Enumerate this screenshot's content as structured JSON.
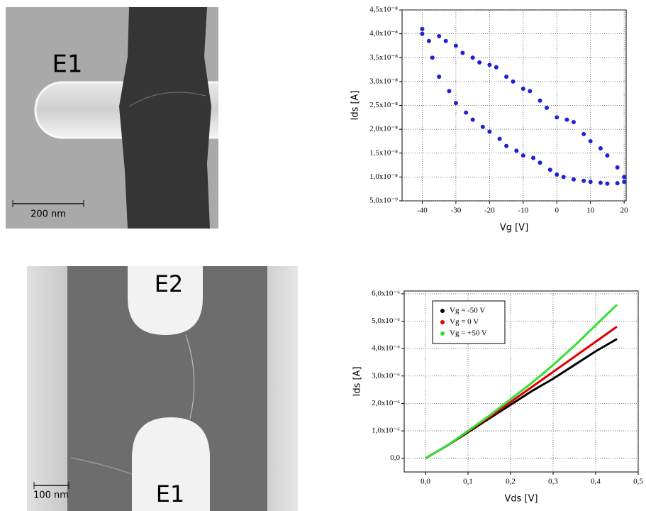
{
  "image_1": {
    "left_label": "E1",
    "right_label": "E2",
    "scale_bar": "200 nm"
  },
  "image_2": {
    "top_label": "E2",
    "bottom_label": "E1",
    "scale_bar": "100 nm"
  },
  "chart_data": [
    {
      "type": "scatter",
      "xlabel": "Vg [V]",
      "ylabel": "Ids [A]",
      "color": "#1f1fd6",
      "grid": true,
      "x": [
        -40,
        -37,
        -35,
        -32,
        -30,
        -27,
        -25,
        -22,
        -20,
        -17,
        -15,
        -12,
        -10,
        -7,
        -5,
        -2,
        0,
        2,
        5,
        8,
        10,
        13,
        15,
        18,
        20,
        20,
        18,
        15,
        13,
        10,
        8,
        5,
        3,
        0,
        -3,
        -5,
        -8,
        -10,
        -13,
        -15,
        -18,
        -20,
        -23,
        -25,
        -28,
        -30,
        -33,
        -35,
        -38,
        -40
      ],
      "values": [
        4e-08,
        3.5e-08,
        3.1e-08,
        2.8e-08,
        2.55e-08,
        2.35e-08,
        2.2e-08,
        2.05e-08,
        1.95e-08,
        1.8e-08,
        1.65e-08,
        1.55e-08,
        1.45e-08,
        1.4e-08,
        1.3e-08,
        1.15e-08,
        1.05e-08,
        1e-08,
        9.5e-09,
        9.2e-09,
        9e-09,
        8.8e-09,
        8.6e-09,
        8.7e-09,
        9e-09,
        1e-08,
        1.2e-08,
        1.45e-08,
        1.6e-08,
        1.75e-08,
        1.9e-08,
        2.15e-08,
        2.2e-08,
        2.25e-08,
        2.45e-08,
        2.6e-08,
        2.8e-08,
        2.85e-08,
        3e-08,
        3.1e-08,
        3.3e-08,
        3.35e-08,
        3.4e-08,
        3.5e-08,
        3.6e-08,
        3.75e-08,
        3.85e-08,
        3.95e-08,
        3.85e-08,
        4.1e-08
      ],
      "xlim": [
        -46,
        20.6
      ],
      "xticks": [
        -40,
        -30,
        -20,
        -10,
        0,
        10,
        20
      ],
      "ylim": [
        5e-09,
        4.5e-08
      ],
      "yticks": [
        {
          "value": 5e-09,
          "label": "5,0x10⁻⁹"
        },
        {
          "value": 1e-08,
          "label": "1,0x10⁻⁸"
        },
        {
          "value": 1.5e-08,
          "label": "1,5x10⁻⁸"
        },
        {
          "value": 2e-08,
          "label": "2,0x10⁻⁸"
        },
        {
          "value": 2.5e-08,
          "label": "2,5x10⁻⁸"
        },
        {
          "value": 3e-08,
          "label": "3,0x10⁻⁸"
        },
        {
          "value": 3.5e-08,
          "label": "3,5x10⁻⁸"
        },
        {
          "value": 4e-08,
          "label": "4,0x10⁻⁸"
        },
        {
          "value": 4.5e-08,
          "label": "4,5x10⁻⁸"
        }
      ]
    },
    {
      "type": "line",
      "xlabel": "Vds [V]",
      "ylabel": "Ids [A]",
      "grid": true,
      "legend": "upper left",
      "x": [
        0,
        0.05,
        0.1,
        0.15,
        0.2,
        0.25,
        0.3,
        0.35,
        0.4,
        0.45
      ],
      "series": [
        {
          "name": "Vg = -50 V",
          "color": "#000000",
          "values": [
            0,
            4.5e-07,
            9.5e-07,
            1.45e-06,
            1.95e-06,
            2.45e-06,
            2.9e-06,
            3.4e-06,
            3.9e-06,
            4.35e-06
          ]
        },
        {
          "name": "Vg = 0 V",
          "color": "#e00000",
          "values": [
            0,
            4.5e-07,
            9.8e-07,
            1.5e-06,
            2.05e-06,
            2.6e-06,
            3.15e-06,
            3.7e-06,
            4.25e-06,
            4.8e-06
          ]
        },
        {
          "name": "Vg = +50 V",
          "color": "#33e033",
          "values": [
            0,
            4.5e-07,
            1e-06,
            1.55e-06,
            2.15e-06,
            2.75e-06,
            3.4e-06,
            4.1e-06,
            4.85e-06,
            5.6e-06
          ]
        }
      ],
      "xlim": [
        -0.05,
        0.5
      ],
      "xticks": [
        {
          "value": 0,
          "label": "0,0"
        },
        {
          "value": 0.1,
          "label": "0,1"
        },
        {
          "value": 0.2,
          "label": "0,2"
        },
        {
          "value": 0.3,
          "label": "0,3"
        },
        {
          "value": 0.4,
          "label": "0,4"
        },
        {
          "value": 0.5,
          "label": "0,5"
        }
      ],
      "ylim": [
        -5e-07,
        6.1e-06
      ],
      "yticks": [
        {
          "value": 0,
          "label": "0,0"
        },
        {
          "value": 1e-06,
          "label": "1,0x10⁻⁶"
        },
        {
          "value": 2e-06,
          "label": "2,0x10⁻⁶"
        },
        {
          "value": 3e-06,
          "label": "3,0x10⁻⁶"
        },
        {
          "value": 4e-06,
          "label": "4,0x10⁻⁶"
        },
        {
          "value": 5e-06,
          "label": "5,0x10⁻⁶"
        },
        {
          "value": 6e-06,
          "label": "6,0x10⁻⁶"
        }
      ]
    }
  ]
}
